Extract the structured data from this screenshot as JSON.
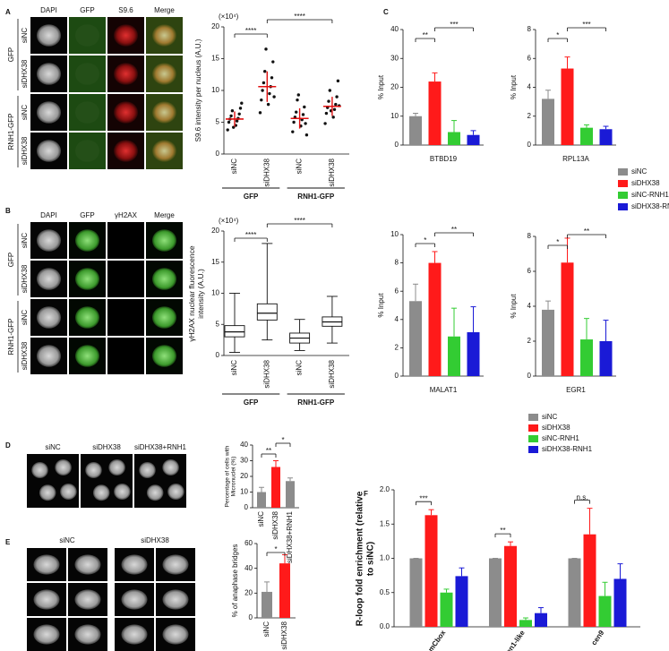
{
  "panels": [
    "A",
    "B",
    "C",
    "D",
    "E",
    "F"
  ],
  "images": {
    "A": {
      "columns": [
        "DAPI",
        "GFP",
        "S9.6",
        "Merge"
      ],
      "rows": [
        "siNC",
        "siDHX38",
        "siNC",
        "siDHX38"
      ],
      "groups": [
        "GFP",
        "RNH1-GFP"
      ]
    },
    "B": {
      "columns": [
        "DAPI",
        "GFP",
        "γH2AX",
        "Merge"
      ],
      "rows": [
        "siNC",
        "siDHX38",
        "siNC",
        "siDHX38"
      ],
      "groups": [
        "GFP",
        "RNH1-GFP"
      ]
    },
    "D": {
      "columns": [
        "siNC",
        "siDHX38",
        "siDHX38+RNH1"
      ]
    },
    "E": {
      "columns": [
        "siNC",
        "siDHX38"
      ]
    }
  },
  "chart_data": [
    {
      "type": "strip",
      "yunit": "(×10⁴)",
      "ylabel": "S9.6 intensity per nucleus (A.U.)",
      "categories": [
        "siNC",
        "siDHX38",
        "siNC",
        "siDHX38"
      ],
      "groups": [
        {
          "label": "GFP",
          "categories": [
            0,
            1
          ]
        },
        {
          "label": "RNH1-GFP",
          "categories": [
            2,
            3
          ]
        }
      ],
      "points": [
        [
          3.8,
          4.5,
          5.0,
          5.2,
          5.5,
          5.6,
          6.0,
          6.3,
          6.8,
          7.2,
          4.2,
          8.0
        ],
        [
          6.5,
          7.8,
          8.5,
          9.5,
          10.0,
          10.6,
          11.2,
          12.0,
          13.0,
          14.5,
          16.5,
          9.0
        ],
        [
          3.5,
          4.4,
          5.0,
          5.4,
          5.8,
          6.2,
          6.6,
          7.4,
          8.5,
          4.8,
          9.3,
          3.0
        ],
        [
          4.8,
          5.8,
          6.4,
          7.0,
          7.3,
          7.8,
          8.3,
          9.0,
          10.0,
          11.5,
          6.8,
          7.6
        ]
      ],
      "means": [
        5.5,
        10.6,
        5.6,
        7.5
      ],
      "sds": [
        1.2,
        2.4,
        1.6,
        1.5
      ],
      "color": "#e01010",
      "ylim": [
        0,
        20
      ],
      "yticks": [
        0,
        5,
        10,
        15,
        20
      ],
      "annotations": [
        {
          "text": "****",
          "between": [
            0,
            1
          ]
        },
        {
          "text": "****",
          "between": [
            1,
            3
          ]
        }
      ]
    },
    {
      "type": "box",
      "yunit": "(×10⁴)",
      "ylabel": "γH2AX nuclear fluorescence intensity (A.U.)",
      "categories": [
        "siNC",
        "siDHX38",
        "siNC",
        "siDHX38"
      ],
      "groups": [
        {
          "label": "GFP",
          "categories": [
            0,
            1
          ]
        },
        {
          "label": "RNH1-GFP",
          "categories": [
            2,
            3
          ]
        }
      ],
      "boxes": [
        {
          "min": 0.5,
          "q1": 3.0,
          "median": 3.8,
          "q3": 4.8,
          "max": 10.0
        },
        {
          "min": 2.5,
          "q1": 5.7,
          "median": 6.8,
          "q3": 8.3,
          "max": 18.0
        },
        {
          "min": 0.8,
          "q1": 2.0,
          "median": 2.8,
          "q3": 3.6,
          "max": 5.8
        },
        {
          "min": 2.0,
          "q1": 4.7,
          "median": 5.4,
          "q3": 6.2,
          "max": 9.5
        }
      ],
      "ylim": [
        0,
        20
      ],
      "yticks": [
        0,
        5,
        10,
        15,
        20
      ],
      "annotations": [
        {
          "text": "****",
          "between": [
            0,
            1
          ]
        },
        {
          "text": "****",
          "between": [
            1,
            3
          ]
        }
      ]
    },
    {
      "type": "bar",
      "category": "BTBD19",
      "ylabel": "% Input",
      "values": [
        10,
        22,
        4.5,
        3.5
      ],
      "errors": [
        1,
        3,
        4,
        1.5
      ],
      "ylim": [
        0,
        40
      ],
      "yticks": [
        0,
        10,
        20,
        30,
        40
      ],
      "annotations": [
        {
          "text": "**",
          "between": [
            0,
            1
          ]
        },
        {
          "text": "***",
          "between": [
            1,
            3
          ]
        }
      ]
    },
    {
      "type": "bar",
      "category": "RPL13A",
      "ylabel": "% Input",
      "values": [
        3.2,
        5.3,
        1.2,
        1.1
      ],
      "errors": [
        0.6,
        0.8,
        0.2,
        0.2
      ],
      "ylim": [
        0,
        8
      ],
      "yticks": [
        0,
        2,
        4,
        6,
        8
      ],
      "annotations": [
        {
          "text": "*",
          "between": [
            0,
            1
          ]
        },
        {
          "text": "***",
          "between": [
            1,
            3
          ]
        }
      ]
    },
    {
      "type": "bar",
      "category": "MALAT1",
      "ylabel": "% Input",
      "values": [
        5.3,
        8.0,
        2.8,
        3.1
      ],
      "errors": [
        1.2,
        0.8,
        2.0,
        1.8
      ],
      "ylim": [
        0,
        10
      ],
      "yticks": [
        0,
        2,
        4,
        6,
        8,
        10
      ],
      "annotations": [
        {
          "text": "*",
          "between": [
            0,
            1
          ]
        },
        {
          "text": "**",
          "between": [
            1,
            3
          ]
        }
      ]
    },
    {
      "type": "bar",
      "category": "EGR1",
      "ylabel": "% Input",
      "values": [
        3.8,
        6.5,
        2.1,
        2.0
      ],
      "errors": [
        0.5,
        1.4,
        1.2,
        1.2
      ],
      "ylim": [
        0,
        8
      ],
      "yticks": [
        0,
        2,
        4,
        6,
        8
      ],
      "annotations": [
        {
          "text": "*",
          "between": [
            0,
            1
          ]
        },
        {
          "text": "**",
          "between": [
            1,
            3
          ]
        }
      ]
    },
    {
      "type": "legend",
      "series": [
        {
          "name": "siNC",
          "color": "#8c8c8c"
        },
        {
          "name": "siDHX38",
          "color": "#ff1a1a"
        },
        {
          "name": "siNC-RNH1",
          "color": "#33cc33"
        },
        {
          "name": "siDHX38-RNH1",
          "color": "#1a1ad6"
        }
      ]
    },
    {
      "type": "bar",
      "ylabel": "Percentage of cells with Micronuclei (%)",
      "categories": [
        "siNC",
        "siDHX38",
        "siDHX38+RNH1"
      ],
      "colors": [
        "#8c8c8c",
        "#ff1a1a",
        "#8c8c8c"
      ],
      "values": [
        10,
        26,
        17
      ],
      "errors": [
        3,
        4,
        2
      ],
      "ylim": [
        0,
        40
      ],
      "yticks": [
        0,
        10,
        20,
        30,
        40
      ],
      "annotations": [
        {
          "text": "**",
          "between": [
            0,
            1
          ]
        },
        {
          "text": "*",
          "between": [
            1,
            2
          ]
        }
      ]
    },
    {
      "type": "bar",
      "ylabel": "% of anaphase bridges",
      "categories": [
        "siNC",
        "siDHX38"
      ],
      "colors": [
        "#8c8c8c",
        "#ff1a1a"
      ],
      "values": [
        21,
        44
      ],
      "errors": [
        8,
        7
      ],
      "ylim": [
        0,
        60
      ],
      "yticks": [
        0,
        20,
        40,
        60
      ],
      "annotations": [
        {
          "text": "*",
          "between": [
            0,
            1
          ]
        }
      ]
    },
    {
      "type": "grouped_bar",
      "ylabel": "R-loop fold enrichment (relative to siNC)",
      "categories": [
        "mCbox",
        "cen1-like",
        "cen9"
      ],
      "series": [
        {
          "name": "siNC",
          "color": "#8c8c8c",
          "values": [
            1.0,
            1.0,
            1.0
          ],
          "errors": [
            0,
            0,
            0
          ]
        },
        {
          "name": "siDHX38",
          "color": "#ff1a1a",
          "values": [
            1.63,
            1.18,
            1.35
          ],
          "errors": [
            0.08,
            0.06,
            0.38
          ]
        },
        {
          "name": "siNC-RNH1",
          "color": "#33cc33",
          "values": [
            0.5,
            0.1,
            0.45
          ],
          "errors": [
            0.05,
            0.03,
            0.2
          ]
        },
        {
          "name": "siDHX38-RNH1",
          "color": "#1a1ad6",
          "values": [
            0.74,
            0.2,
            0.7
          ],
          "errors": [
            0.12,
            0.08,
            0.22
          ]
        }
      ],
      "ylim": [
        0,
        2
      ],
      "yticks": [
        {
          "value": 0,
          "label": "0.0"
        },
        {
          "value": 0.5,
          "label": "0.5"
        },
        {
          "value": 1,
          "label": "1.0"
        },
        {
          "value": 1.5,
          "label": "1.5"
        },
        {
          "value": 2,
          "label": "2.0"
        }
      ],
      "annotations": [
        {
          "text": "***",
          "category": 0,
          "between": [
            0,
            1
          ]
        },
        {
          "text": "**",
          "category": 1,
          "between": [
            0,
            1
          ]
        },
        {
          "text": "n.s.",
          "category": 2,
          "between": [
            0,
            1
          ]
        }
      ]
    }
  ]
}
